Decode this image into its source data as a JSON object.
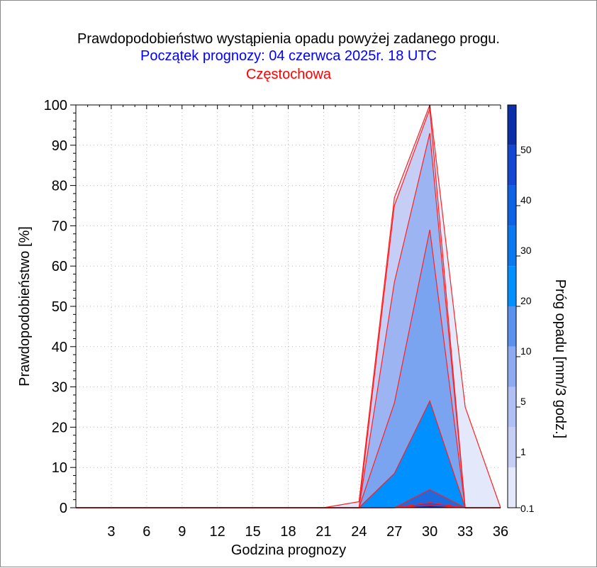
{
  "chart_data": {
    "type": "area",
    "title": "Prawdopodobieństwo wystąpienia opadu powyżej zadanego progu.",
    "subtitle": "Początek prognozy: 04 czerwca 2025r. 18 UTC",
    "location": "Częstochowa",
    "xlabel": "Godzina prognozy",
    "ylabel": "Prawdopodobieństwo [%]",
    "colorbar_label": "Próg opadu [mm/3 godz.]",
    "xlim": [
      0,
      36
    ],
    "ylim": [
      0,
      100
    ],
    "x_ticks": [
      "3",
      "6",
      "9",
      "12",
      "15",
      "18",
      "21",
      "24",
      "27",
      "30",
      "33",
      "36"
    ],
    "y_ticks": [
      "0",
      "10",
      "20",
      "30",
      "40",
      "50",
      "60",
      "70",
      "80",
      "90",
      "100"
    ],
    "grid": true,
    "x": [
      0,
      3,
      6,
      9,
      12,
      15,
      18,
      21,
      24,
      27,
      30,
      33,
      36
    ],
    "series": [
      {
        "threshold": "0.1",
        "color": "#e4e8fb",
        "values": [
          0,
          0,
          0,
          0,
          0,
          0,
          0,
          0,
          1.5,
          77,
          100,
          25,
          0
        ]
      },
      {
        "threshold": "1",
        "color": "#c6cef6",
        "values": [
          0,
          0,
          0,
          0,
          0,
          0,
          0,
          0,
          0,
          75,
          99,
          0,
          0
        ]
      },
      {
        "threshold": "5",
        "color": "#9cb4f2",
        "values": [
          0,
          0,
          0,
          0,
          0,
          0,
          0,
          0,
          0,
          56,
          93,
          0,
          0
        ]
      },
      {
        "threshold": "10",
        "color": "#7aa4f0",
        "values": [
          0,
          0,
          0,
          0,
          0,
          0,
          0,
          0,
          0,
          26,
          69,
          0,
          0
        ]
      },
      {
        "threshold": "20",
        "color": "#0090ff",
        "values": [
          0,
          0,
          0,
          0,
          0,
          0,
          0,
          0,
          0,
          8.5,
          26.5,
          0,
          0
        ]
      },
      {
        "threshold": "30",
        "color": "#1a6ce0",
        "values": [
          0,
          0,
          0,
          0,
          0,
          0,
          0,
          0,
          0,
          0,
          4.5,
          0,
          0
        ]
      },
      {
        "threshold": "40",
        "color": "#2450d8",
        "values": [
          0,
          0,
          0,
          0,
          0,
          0,
          0,
          0,
          0,
          0,
          1.3,
          0,
          0
        ]
      },
      {
        "threshold": "50",
        "color": "#0c2ea8",
        "values": [
          0,
          0,
          0,
          0,
          0,
          0,
          0,
          0,
          0,
          0,
          0.6,
          0,
          0
        ]
      }
    ],
    "colorbar": {
      "labels": [
        "0.1",
        "1",
        "5",
        "10",
        "20",
        "30",
        "40",
        "50"
      ],
      "colors": [
        "#e4e8fb",
        "#c6cef6",
        "#b0c0f4",
        "#8eaaf1",
        "#5b92ee",
        "#0090ff",
        "#0a79f0",
        "#0f62e4",
        "#1448d2",
        "#0a2fa8"
      ]
    },
    "line_color": "#ff2020"
  }
}
